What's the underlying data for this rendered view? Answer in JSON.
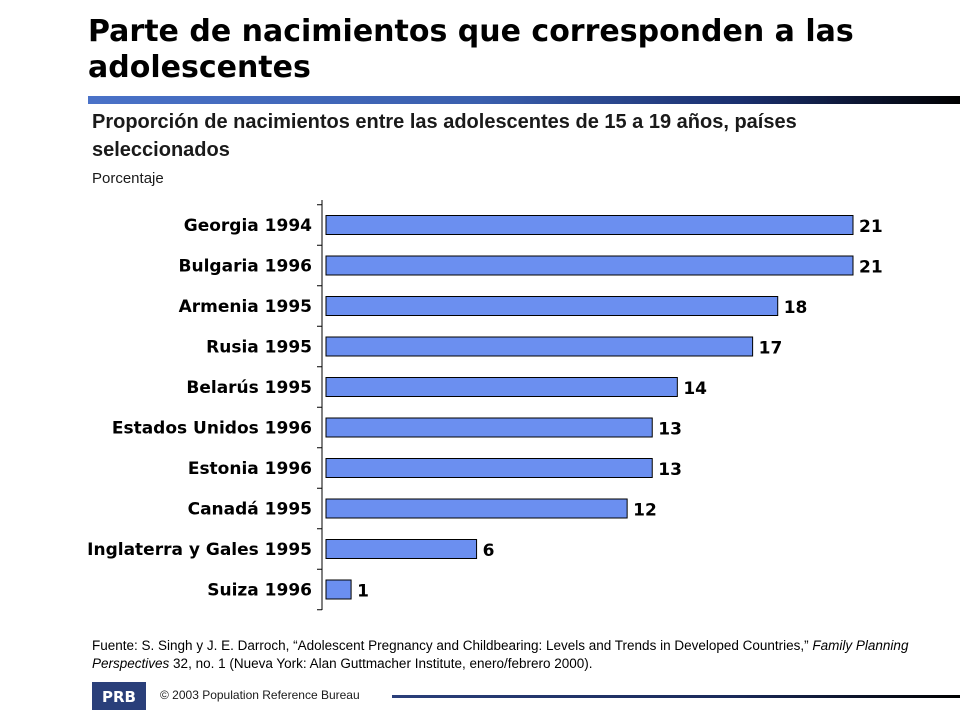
{
  "slide": {
    "title": "Parte de nacimientos que corresponden a las adolescentes",
    "subtitle": "Proporción de nacimientos entre las adolescentes de 15 a 19 años, países seleccionados",
    "unit_label": "Porcentaje",
    "source": {
      "prefix": "Fuente: S. Singh y J. E. Darroch, “Adolescent Pregnancy and Childbearing: Levels and Trends in Developed Countries,” ",
      "journal": "Family Planning Perspectives",
      "suffix": " 32, no. 1 (Nueva York: Alan Guttmacher Institute, enero/febrero 2000)."
    },
    "copyright": "© 2003 Population Reference Bureau",
    "logo_text": "PRB"
  },
  "colors": {
    "bar_fill": "#6b8ff0",
    "bar_stroke": "#000000",
    "title_rule": "#3a5fae"
  },
  "chart_data": {
    "type": "bar",
    "orientation": "horizontal",
    "categories": [
      "Georgia 1994",
      "Bulgaria 1996",
      "Armenia 1995",
      "Rusia 1995",
      "Belarús 1995",
      "Estados Unidos  1996",
      "Estonia 1996",
      "Canadá 1995",
      "Inglaterra y Gales 1995",
      "Suiza 1996"
    ],
    "values": [
      21,
      21,
      18,
      17,
      14,
      13,
      13,
      12,
      6,
      1
    ],
    "title": "Proporción de nacimientos entre las adolescentes de 15 a 19 años, países seleccionados",
    "xlabel": "",
    "ylabel": "Porcentaje",
    "xlim": [
      0,
      21
    ],
    "grid": false,
    "legend": "none",
    "data_labels": true
  }
}
